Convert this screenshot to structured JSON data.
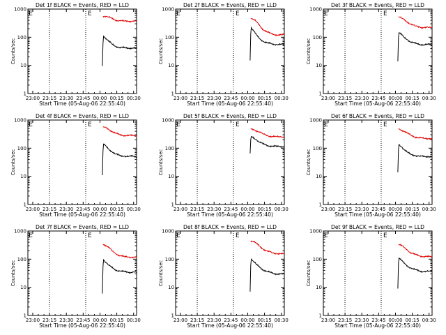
{
  "figure": {
    "x_axis_label": "Start Time (05-Aug-06 22:55:40)",
    "y_axis_label": "Counts/sec",
    "x_tick_labels": [
      "23:00",
      "23:15",
      "23:30",
      "23:45",
      "00:00",
      "00:15",
      "00:30"
    ],
    "y_tick_labels": [
      "1",
      "10",
      "100",
      "1000"
    ]
  },
  "chart_data": [
    {
      "type": "line",
      "title": "Det 1f BLACK = Events, RED = LLD",
      "xlabel": "Start Time (05-Aug-06 22:55:40)",
      "ylabel": "Counts/sec",
      "x_unit": "minutes after 22:55:40",
      "xlim": [
        0,
        97
      ],
      "ylim": [
        1,
        1000
      ],
      "y_scale": "log",
      "vertical_lines_dotted": [
        19.3,
        51.6
      ],
      "markers": [
        "E",
        "E"
      ],
      "marker_x": [
        0.8,
        53.5
      ],
      "series": [
        {
          "name": "Events",
          "color": "#000000",
          "x": [
            66.5,
            67.0,
            67.5,
            68,
            70,
            72,
            75,
            78,
            82,
            86,
            90,
            94,
            97
          ],
          "y": [
            9.5,
            60,
            110,
            105,
            88,
            72,
            58,
            48,
            43,
            42,
            41,
            42,
            41
          ]
        },
        {
          "name": "LLD",
          "color": "#e00000",
          "x": [
            67.0,
            68,
            70,
            72,
            75,
            78,
            82,
            86,
            90,
            94,
            97
          ],
          "y": [
            560,
            555,
            545,
            520,
            460,
            410,
            385,
            375,
            372,
            370,
            368
          ]
        }
      ]
    },
    {
      "type": "line",
      "title": "Det 2f BLACK = Events, RED = LLD",
      "xlabel": "Start Time (05-Aug-06 22:55:40)",
      "ylabel": "Counts/sec",
      "x_unit": "minutes after 22:55:40",
      "xlim": [
        0,
        97
      ],
      "ylim": [
        1,
        1000
      ],
      "y_scale": "log",
      "vertical_lines_dotted": [
        19.3,
        51.6
      ],
      "markers": [
        "E",
        "E"
      ],
      "marker_x": [
        0.8,
        53.5
      ],
      "series": [
        {
          "name": "Events",
          "color": "#000000",
          "x": [
            66.5,
            67.0,
            67.5,
            68,
            70,
            72,
            75,
            78,
            82,
            86,
            90,
            94,
            97
          ],
          "y": [
            15,
            130,
            220,
            200,
            160,
            120,
            90,
            72,
            62,
            58,
            55,
            56,
            55
          ]
        },
        {
          "name": "LLD",
          "color": "#e00000",
          "x": [
            67.0,
            68,
            70,
            72,
            75,
            78,
            82,
            86,
            90,
            94,
            97
          ],
          "y": [
            460,
            450,
            420,
            360,
            260,
            190,
            150,
            130,
            122,
            120,
            125
          ]
        }
      ]
    },
    {
      "type": "line",
      "title": "Det 3f BLACK = Events, RED = LLD",
      "xlabel": "Start Time (05-Aug-06 22:55:40)",
      "ylabel": "Counts/sec",
      "x_unit": "minutes after 22:55:40",
      "xlim": [
        0,
        97
      ],
      "ylim": [
        1,
        1000
      ],
      "y_scale": "log",
      "vertical_lines_dotted": [
        19.3,
        51.6
      ],
      "markers": [
        "E",
        "E"
      ],
      "marker_x": [
        0.8,
        53.5
      ],
      "series": [
        {
          "name": "Events",
          "color": "#000000",
          "x": [
            66.5,
            67.0,
            67.5,
            68,
            70,
            72,
            75,
            78,
            82,
            86,
            90,
            94,
            97
          ],
          "y": [
            14,
            95,
            145,
            140,
            120,
            100,
            82,
            68,
            60,
            56,
            54,
            55,
            55
          ]
        },
        {
          "name": "LLD",
          "color": "#e00000",
          "x": [
            67.0,
            68,
            70,
            72,
            75,
            78,
            82,
            86,
            90,
            94,
            97
          ],
          "y": [
            530,
            510,
            470,
            420,
            350,
            290,
            250,
            230,
            220,
            222,
            220
          ]
        }
      ]
    },
    {
      "type": "line",
      "title": "Det 4f BLACK = Events, RED = LLD",
      "xlabel": "Start Time (05-Aug-06 22:55:40)",
      "ylabel": "Counts/sec",
      "x_unit": "minutes after 22:55:40",
      "xlim": [
        0,
        97
      ],
      "ylim": [
        1,
        1000
      ],
      "y_scale": "log",
      "vertical_lines_dotted": [
        19.3,
        51.6
      ],
      "markers": [
        "E",
        "E"
      ],
      "marker_x": [
        0.8,
        53.5
      ],
      "series": [
        {
          "name": "Events",
          "color": "#000000",
          "x": [
            66.5,
            67.0,
            67.5,
            68,
            70,
            72,
            75,
            78,
            82,
            86,
            90,
            94,
            97
          ],
          "y": [
            11,
            80,
            140,
            135,
            115,
            95,
            75,
            62,
            55,
            52,
            51,
            52,
            50
          ]
        },
        {
          "name": "LLD",
          "color": "#e00000",
          "x": [
            67.0,
            68,
            70,
            72,
            75,
            78,
            82,
            86,
            90,
            94,
            97
          ],
          "y": [
            580,
            560,
            520,
            470,
            400,
            340,
            300,
            285,
            280,
            282,
            280
          ]
        }
      ]
    },
    {
      "type": "line",
      "title": "Det 5f BLACK = Events, RED = LLD",
      "xlabel": "Start Time (05-Aug-06 22:55:40)",
      "ylabel": "Counts/sec",
      "x_unit": "minutes after 22:55:40",
      "xlim": [
        0,
        97
      ],
      "ylim": [
        1,
        1000
      ],
      "y_scale": "log",
      "vertical_lines_dotted": [
        19.3,
        51.6
      ],
      "markers": [
        "E",
        "E"
      ],
      "marker_x": [
        0.8,
        53.5
      ],
      "series": [
        {
          "name": "Events",
          "color": "#000000",
          "x": [
            66.5,
            67.0,
            67.5,
            68,
            70,
            72,
            75,
            78,
            82,
            86,
            90,
            94,
            97
          ],
          "y": [
            65,
            200,
            260,
            255,
            230,
            200,
            165,
            140,
            125,
            118,
            115,
            116,
            115
          ]
        },
        {
          "name": "LLD",
          "color": "#e00000",
          "x": [
            67.0,
            68,
            70,
            72,
            75,
            78,
            82,
            86,
            90,
            94,
            97
          ],
          "y": [
            480,
            470,
            450,
            420,
            370,
            320,
            280,
            260,
            255,
            255,
            255
          ]
        }
      ]
    },
    {
      "type": "line",
      "title": "Det 6f BLACK = Events, RED = LLD",
      "xlabel": "Start Time (05-Aug-06 22:55:40)",
      "ylabel": "Counts/sec",
      "x_unit": "minutes after 22:55:40",
      "xlim": [
        0,
        97
      ],
      "ylim": [
        1,
        1000
      ],
      "y_scale": "log",
      "vertical_lines_dotted": [
        19.3,
        51.6
      ],
      "markers": [
        "E",
        "E"
      ],
      "marker_x": [
        0.8,
        53.5
      ],
      "series": [
        {
          "name": "Events",
          "color": "#000000",
          "x": [
            66.5,
            67.0,
            67.5,
            68,
            70,
            72,
            75,
            78,
            82,
            86,
            90,
            94,
            97
          ],
          "y": [
            14,
            90,
            135,
            130,
            110,
            90,
            72,
            60,
            55,
            52,
            50,
            51,
            50
          ]
        },
        {
          "name": "LLD",
          "color": "#e00000",
          "x": [
            67.0,
            68,
            70,
            72,
            75,
            78,
            82,
            86,
            90,
            94,
            97
          ],
          "y": [
            480,
            470,
            440,
            400,
            340,
            290,
            250,
            230,
            225,
            222,
            220
          ]
        }
      ]
    },
    {
      "type": "line",
      "title": "Det 7f BLACK = Events, RED = LLD",
      "xlabel": "Start Time (05-Aug-06 22:55:40)",
      "ylabel": "Counts/sec",
      "x_unit": "minutes after 22:55:40",
      "xlim": [
        0,
        97
      ],
      "ylim": [
        1,
        1000
      ],
      "y_scale": "log",
      "vertical_lines_dotted": [
        19.3,
        51.6
      ],
      "markers": [
        "E",
        "E"
      ],
      "marker_x": [
        0.8,
        53.5
      ],
      "series": [
        {
          "name": "Events",
          "color": "#000000",
          "x": [
            66.5,
            67.0,
            67.5,
            68,
            70,
            72,
            75,
            78,
            82,
            86,
            90,
            94,
            97
          ],
          "y": [
            6,
            55,
            95,
            90,
            75,
            62,
            50,
            42,
            38,
            36,
            34,
            35,
            34
          ]
        },
        {
          "name": "LLD",
          "color": "#e00000",
          "x": [
            67.0,
            68,
            70,
            72,
            75,
            78,
            82,
            86,
            90,
            94,
            97
          ],
          "y": [
            340,
            330,
            300,
            260,
            200,
            160,
            135,
            122,
            118,
            118,
            117
          ]
        }
      ]
    },
    {
      "type": "line",
      "title": "Det 8f BLACK = Events, RED = LLD",
      "xlabel": "Start Time (05-Aug-06 22:55:40)",
      "ylabel": "Counts/sec",
      "x_unit": "minutes after 22:55:40",
      "xlim": [
        0,
        97
      ],
      "ylim": [
        1,
        1000
      ],
      "y_scale": "log",
      "vertical_lines_dotted": [
        19.3,
        51.6
      ],
      "markers": [
        "E",
        "E"
      ],
      "marker_x": [
        0.8,
        53.5
      ],
      "series": [
        {
          "name": "Events",
          "color": "#000000",
          "x": [
            66.5,
            67.0,
            67.5,
            68,
            70,
            72,
            75,
            78,
            82,
            86,
            90,
            94,
            97
          ],
          "y": [
            7,
            60,
            100,
            95,
            80,
            65,
            52,
            42,
            36,
            32,
            30,
            30,
            29
          ]
        },
        {
          "name": "LLD",
          "color": "#e00000",
          "x": [
            67.0,
            68,
            70,
            72,
            75,
            78,
            82,
            86,
            90,
            94,
            97
          ],
          "y": [
            450,
            440,
            410,
            360,
            290,
            230,
            190,
            170,
            160,
            155,
            150
          ]
        }
      ]
    },
    {
      "type": "line",
      "title": "Det 9f BLACK = Events, RED = LLD",
      "xlabel": "Start Time (05-Aug-06 22:55:40)",
      "ylabel": "Counts/sec",
      "x_unit": "minutes after 22:55:40",
      "xlim": [
        0,
        97
      ],
      "ylim": [
        1,
        1000
      ],
      "y_scale": "log",
      "vertical_lines_dotted": [
        19.3,
        51.6
      ],
      "markers": [
        "E",
        "E"
      ],
      "marker_x": [
        0.8,
        53.5
      ],
      "series": [
        {
          "name": "Events",
          "color": "#000000",
          "x": [
            66.5,
            67.0,
            67.5,
            68,
            70,
            72,
            75,
            78,
            82,
            86,
            90,
            94,
            97
          ],
          "y": [
            9,
            70,
            110,
            105,
            88,
            72,
            58,
            48,
            42,
            38,
            36,
            37,
            36
          ]
        },
        {
          "name": "LLD",
          "color": "#e00000",
          "x": [
            67.0,
            68,
            70,
            72,
            75,
            78,
            82,
            86,
            90,
            94,
            97
          ],
          "y": [
            330,
            320,
            300,
            265,
            210,
            170,
            145,
            130,
            125,
            122,
            120
          ]
        }
      ]
    }
  ]
}
